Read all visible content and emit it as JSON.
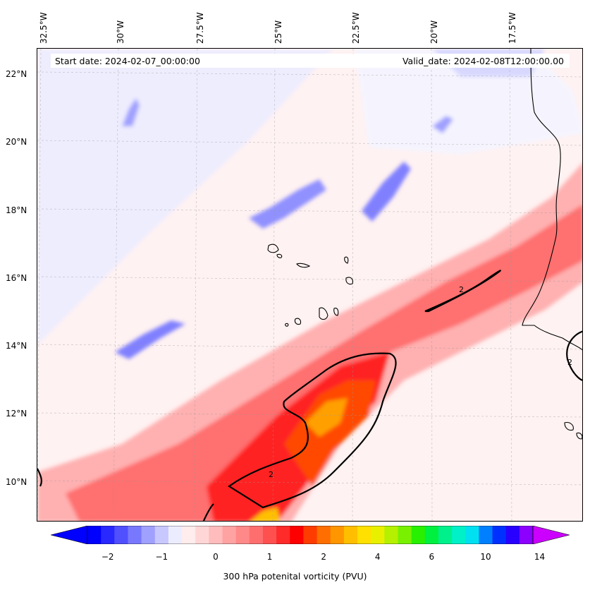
{
  "map": {
    "longitude_labels": [
      "32.5°W",
      "30°W",
      "27.5°W",
      "25°W",
      "22.5°W",
      "20°W",
      "17.5°W"
    ],
    "latitude_labels": [
      "22°N",
      "20°N",
      "18°N",
      "16°N",
      "14°N",
      "12°N",
      "10°N"
    ],
    "start_date": "Start date: 2024-02-07_00:00:00",
    "valid_date": "Valid_date: 2024-02-08T12:00:00.00",
    "contour_label": "2",
    "gridlines": true
  },
  "colorbar": {
    "tick_labels": [
      "−2",
      "−1",
      "0",
      "1",
      "2",
      "4",
      "6",
      "10",
      "14"
    ],
    "title": "300 hPa potenital vorticity (PVU)",
    "colors": [
      "#0000ff",
      "#2828ff",
      "#5050ff",
      "#7878ff",
      "#a0a0ff",
      "#c8c8ff",
      "#ececff",
      "#ffecec",
      "#ffd6d6",
      "#ffbcbc",
      "#ffa2a2",
      "#ff8888",
      "#ff6e6e",
      "#ff5050",
      "#ff2a2a",
      "#ff0000",
      "#ff3c00",
      "#ff6e00",
      "#ff9600",
      "#ffbe00",
      "#ffe000",
      "#e8f000",
      "#b4f000",
      "#78f000",
      "#28f000",
      "#00f040",
      "#00f08c",
      "#00f0c8",
      "#00e0f0",
      "#0080ff",
      "#0030ff",
      "#2800ff",
      "#8c00ff"
    ],
    "under_color": "#0000ff",
    "over_color": "#cc00ff"
  }
}
